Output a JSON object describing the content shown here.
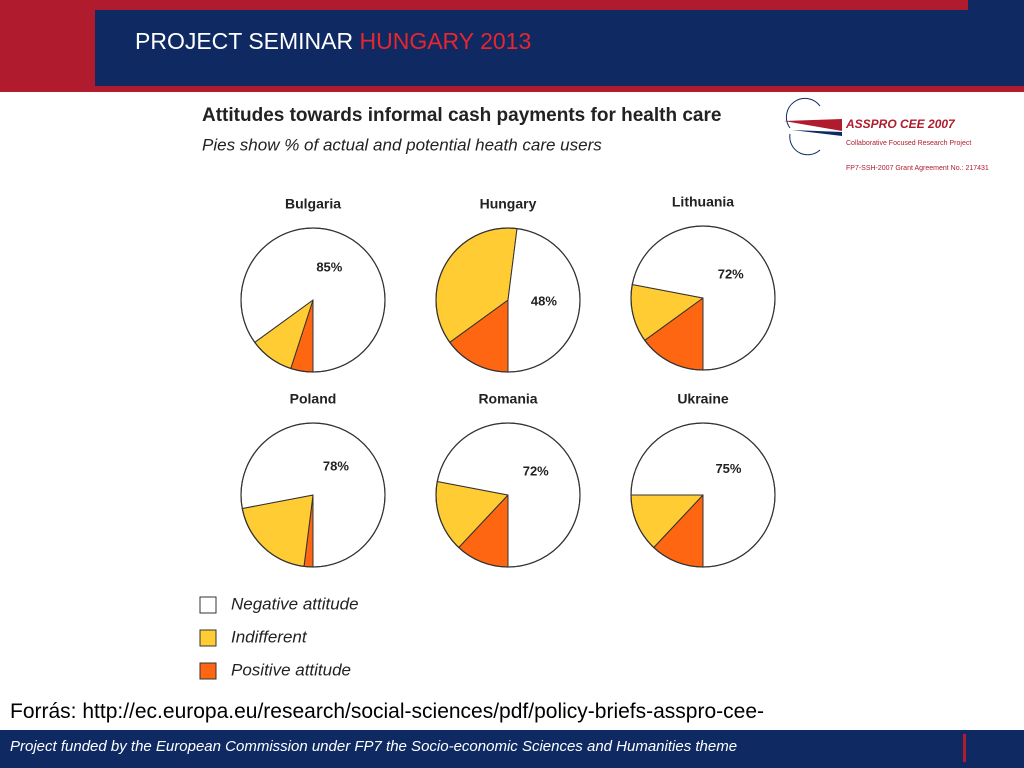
{
  "header": {
    "title_part1": "PROJECT SEMINAR",
    "title_part2": "HUNGARY 2013"
  },
  "logo": {
    "name": "ASSPRO CEE 2007",
    "subtitle": "Collaborative Focused Research Project",
    "grant": "FP7-SSH-2007 Grant Agreement No.: 217431"
  },
  "figure": {
    "title": "Attitudes towards informal cash payments for health care",
    "subtitle": "Pies show % of actual and potential heath care users"
  },
  "legend": {
    "labels": [
      "Negative attitude",
      "Indifferent",
      "Positive attitude"
    ],
    "colors": [
      "#ffffff",
      "#ffcc33",
      "#ff6611"
    ]
  },
  "chart_data": [
    {
      "type": "pie",
      "title": "Bulgaria",
      "values": [
        85,
        10,
        5
      ],
      "value_labels": [
        "85%",
        null,
        null
      ]
    },
    {
      "type": "pie",
      "title": "Hungary",
      "values": [
        48,
        37,
        15
      ],
      "value_labels": [
        "48%",
        null,
        null
      ]
    },
    {
      "type": "pie",
      "title": "Lithuania",
      "values": [
        72,
        13,
        15
      ],
      "value_labels": [
        "72%",
        null,
        null
      ]
    },
    {
      "type": "pie",
      "title": "Poland",
      "values": [
        78,
        20,
        2
      ],
      "value_labels": [
        "78%",
        null,
        null
      ]
    },
    {
      "type": "pie",
      "title": "Romania",
      "values": [
        72,
        16,
        12
      ],
      "value_labels": [
        "72%",
        null,
        null
      ]
    },
    {
      "type": "pie",
      "title": "Ukraine",
      "values": [
        75,
        13,
        12
      ],
      "value_labels": [
        "75%",
        null,
        null
      ]
    }
  ],
  "source": "Forrás: http://ec.europa.eu/research/social-sciences/pdf/policy-briefs-asspro-cee-",
  "footer": "Project funded by the European Commission under FP7 the Socio-economic Sciences and Humanities theme"
}
